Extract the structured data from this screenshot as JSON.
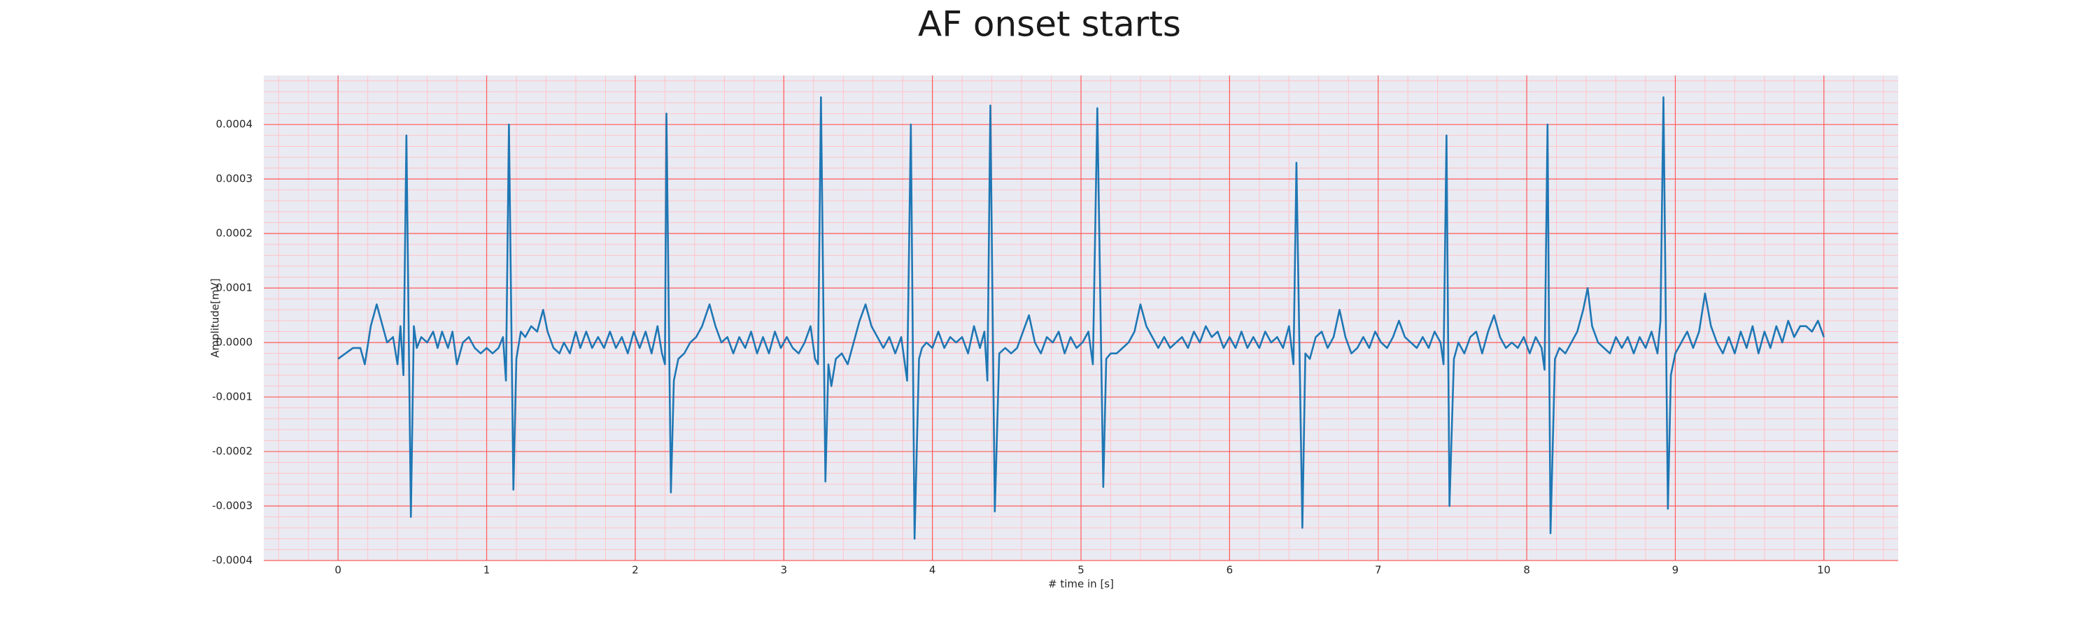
{
  "chart_data": {
    "type": "line",
    "title": "AF onset starts",
    "xlabel": "# time in [s]",
    "ylabel": "Amplitude[mV]",
    "xlim": [
      -0.5,
      10.5
    ],
    "ylim": [
      -0.0004,
      0.00049
    ],
    "xticks": [
      0,
      1,
      2,
      3,
      4,
      5,
      6,
      7,
      8,
      9,
      10
    ],
    "yticks": [
      -0.0004,
      -0.0003,
      -0.0002,
      -0.0001,
      {
        "value": 0,
        "label": "0.0000"
      },
      0.0001,
      0.0002,
      0.0003,
      0.0004
    ],
    "grid": true,
    "minor_grid": true,
    "grid_color": "#ff5a5a",
    "minor_grid_color": "#ffc4c8",
    "background": "#eaeaf2",
    "x": [
      0.0,
      0.05,
      0.1,
      0.15,
      0.18,
      0.22,
      0.26,
      0.3,
      0.33,
      0.37,
      0.4,
      0.42,
      0.44,
      0.46,
      0.49,
      0.51,
      0.53,
      0.56,
      0.6,
      0.64,
      0.67,
      0.7,
      0.74,
      0.77,
      0.8,
      0.84,
      0.88,
      0.92,
      0.96,
      1.0,
      1.04,
      1.08,
      1.11,
      1.13,
      1.15,
      1.18,
      1.2,
      1.23,
      1.26,
      1.3,
      1.34,
      1.38,
      1.41,
      1.45,
      1.49,
      1.52,
      1.56,
      1.6,
      1.63,
      1.67,
      1.71,
      1.75,
      1.79,
      1.83,
      1.87,
      1.91,
      1.95,
      1.99,
      2.03,
      2.07,
      2.11,
      2.15,
      2.18,
      2.2,
      2.21,
      2.24,
      2.26,
      2.29,
      2.33,
      2.37,
      2.41,
      2.45,
      2.5,
      2.54,
      2.58,
      2.62,
      2.66,
      2.7,
      2.74,
      2.78,
      2.82,
      2.86,
      2.9,
      2.94,
      2.98,
      3.02,
      3.06,
      3.1,
      3.14,
      3.18,
      3.21,
      3.23,
      3.25,
      3.28,
      3.3,
      3.32,
      3.35,
      3.39,
      3.43,
      3.47,
      3.51,
      3.55,
      3.59,
      3.63,
      3.67,
      3.71,
      3.75,
      3.79,
      3.83,
      3.855,
      3.88,
      3.91,
      3.93,
      3.96,
      4.0,
      4.04,
      4.08,
      4.12,
      4.16,
      4.2,
      4.24,
      4.28,
      4.32,
      4.35,
      4.37,
      4.39,
      4.42,
      4.45,
      4.49,
      4.53,
      4.57,
      4.61,
      4.65,
      4.69,
      4.73,
      4.77,
      4.81,
      4.85,
      4.89,
      4.93,
      4.97,
      5.01,
      5.05,
      5.08,
      5.11,
      5.15,
      5.17,
      5.2,
      5.24,
      5.28,
      5.32,
      5.36,
      5.4,
      5.44,
      5.48,
      5.52,
      5.56,
      5.6,
      5.64,
      5.68,
      5.72,
      5.76,
      5.8,
      5.84,
      5.88,
      5.92,
      5.96,
      6.0,
      6.04,
      6.08,
      6.12,
      6.16,
      6.2,
      6.24,
      6.28,
      6.32,
      6.36,
      6.4,
      6.43,
      6.45,
      6.49,
      6.51,
      6.54,
      6.58,
      6.62,
      6.66,
      6.7,
      6.74,
      6.78,
      6.82,
      6.86,
      6.9,
      6.94,
      6.98,
      7.02,
      7.06,
      7.1,
      7.14,
      7.18,
      7.22,
      7.26,
      7.3,
      7.34,
      7.38,
      7.42,
      7.44,
      7.46,
      7.48,
      7.51,
      7.54,
      7.58,
      7.62,
      7.66,
      7.7,
      7.74,
      7.78,
      7.82,
      7.86,
      7.9,
      7.94,
      7.98,
      8.02,
      8.06,
      8.1,
      8.12,
      8.14,
      8.16,
      8.19,
      8.22,
      8.26,
      8.3,
      8.34,
      8.38,
      8.41,
      8.44,
      8.48,
      8.52,
      8.56,
      8.6,
      8.64,
      8.68,
      8.72,
      8.76,
      8.8,
      8.84,
      8.88,
      8.9,
      8.92,
      8.95,
      8.97,
      9.0,
      9.04,
      9.08,
      9.12,
      9.16,
      9.2,
      9.24,
      9.28,
      9.32,
      9.36,
      9.4,
      9.44,
      9.48,
      9.52,
      9.56,
      9.6,
      9.64,
      9.68,
      9.72,
      9.76,
      9.8,
      9.84,
      9.88,
      9.92,
      9.96,
      10.0
    ],
    "series": [
      {
        "color": "#1f77b4",
        "values": [
          -3e-05,
          -2e-05,
          -1e-05,
          -1e-05,
          -4e-05,
          3e-05,
          7e-05,
          3e-05,
          0.0,
          1e-05,
          -4e-05,
          3e-05,
          -6e-05,
          0.00038,
          -0.00032,
          3e-05,
          -1e-05,
          1e-05,
          0.0,
          2e-05,
          -1e-05,
          2e-05,
          -1e-05,
          2e-05,
          -4e-05,
          0.0,
          1e-05,
          -1e-05,
          -2e-05,
          -1e-05,
          -2e-05,
          -1e-05,
          1e-05,
          -7e-05,
          0.0004,
          -0.00027,
          -3e-05,
          2e-05,
          1e-05,
          3e-05,
          2e-05,
          6e-05,
          2e-05,
          -1e-05,
          -2e-05,
          0.0,
          -2e-05,
          2e-05,
          -1e-05,
          2e-05,
          -1e-05,
          1e-05,
          -1e-05,
          2e-05,
          -1e-05,
          1e-05,
          -2e-05,
          2e-05,
          -1e-05,
          2e-05,
          -2e-05,
          3e-05,
          -2e-05,
          -4e-05,
          0.00042,
          -0.000275,
          -7e-05,
          -3e-05,
          -2e-05,
          0.0,
          1e-05,
          3e-05,
          7e-05,
          3e-05,
          0.0,
          1e-05,
          -2e-05,
          1e-05,
          -1e-05,
          2e-05,
          -2e-05,
          1e-05,
          -2e-05,
          2e-05,
          -1e-05,
          1e-05,
          -1e-05,
          -2e-05,
          0.0,
          3e-05,
          -3e-05,
          -4e-05,
          0.00045,
          -0.000255,
          -4e-05,
          -8e-05,
          -3e-05,
          -2e-05,
          -4e-05,
          0.0,
          4e-05,
          7e-05,
          3e-05,
          1e-05,
          -1e-05,
          1e-05,
          -2e-05,
          1e-05,
          -7e-05,
          0.0004,
          -0.00036,
          -3e-05,
          -1e-05,
          0.0,
          -1e-05,
          2e-05,
          -1e-05,
          1e-05,
          0.0,
          1e-05,
          -2e-05,
          3e-05,
          -1e-05,
          2e-05,
          -7e-05,
          0.000435,
          -0.00031,
          -2e-05,
          -1e-05,
          -2e-05,
          -1e-05,
          2e-05,
          5e-05,
          0.0,
          -2e-05,
          1e-05,
          0.0,
          2e-05,
          -2e-05,
          1e-05,
          -1e-05,
          0.0,
          2e-05,
          -4e-05,
          0.00043,
          -0.000265,
          -3e-05,
          -2e-05,
          -2e-05,
          -1e-05,
          0.0,
          2e-05,
          7e-05,
          3e-05,
          1e-05,
          -1e-05,
          1e-05,
          -1e-05,
          0.0,
          1e-05,
          -1e-05,
          2e-05,
          0.0,
          3e-05,
          1e-05,
          2e-05,
          -1e-05,
          1e-05,
          -1e-05,
          2e-05,
          -1e-05,
          1e-05,
          -1e-05,
          2e-05,
          0.0,
          1e-05,
          -1e-05,
          3e-05,
          -4e-05,
          0.00033,
          -0.00034,
          -2e-05,
          -3e-05,
          1e-05,
          2e-05,
          -1e-05,
          1e-05,
          6e-05,
          1e-05,
          -2e-05,
          -1e-05,
          1e-05,
          -1e-05,
          2e-05,
          0.0,
          -1e-05,
          1e-05,
          4e-05,
          1e-05,
          0.0,
          -1e-05,
          1e-05,
          -1e-05,
          2e-05,
          0.0,
          -4e-05,
          0.00038,
          -0.0003,
          -3e-05,
          0.0,
          -2e-05,
          1e-05,
          2e-05,
          -2e-05,
          2e-05,
          5e-05,
          1e-05,
          -1e-05,
          0.0,
          -1e-05,
          1e-05,
          -2e-05,
          1e-05,
          -1e-05,
          -5e-05,
          0.0004,
          -0.00035,
          -3e-05,
          -1e-05,
          -2e-05,
          0.0,
          2e-05,
          6e-05,
          0.0001,
          3e-05,
          0.0,
          -1e-05,
          -2e-05,
          1e-05,
          -1e-05,
          1e-05,
          -2e-05,
          1e-05,
          -1e-05,
          2e-05,
          -2e-05,
          4e-05,
          0.00045,
          -0.000305,
          -6e-05,
          -2e-05,
          0.0,
          2e-05,
          -1e-05,
          2e-05,
          9e-05,
          3e-05,
          0.0,
          -2e-05,
          1e-05,
          -2e-05,
          2e-05,
          -1e-05,
          3e-05,
          -2e-05,
          2e-05,
          -1e-05,
          3e-05,
          0.0,
          4e-05,
          1e-05,
          3e-05,
          3e-05,
          2e-05,
          4e-05,
          1e-05
        ]
      }
    ]
  }
}
